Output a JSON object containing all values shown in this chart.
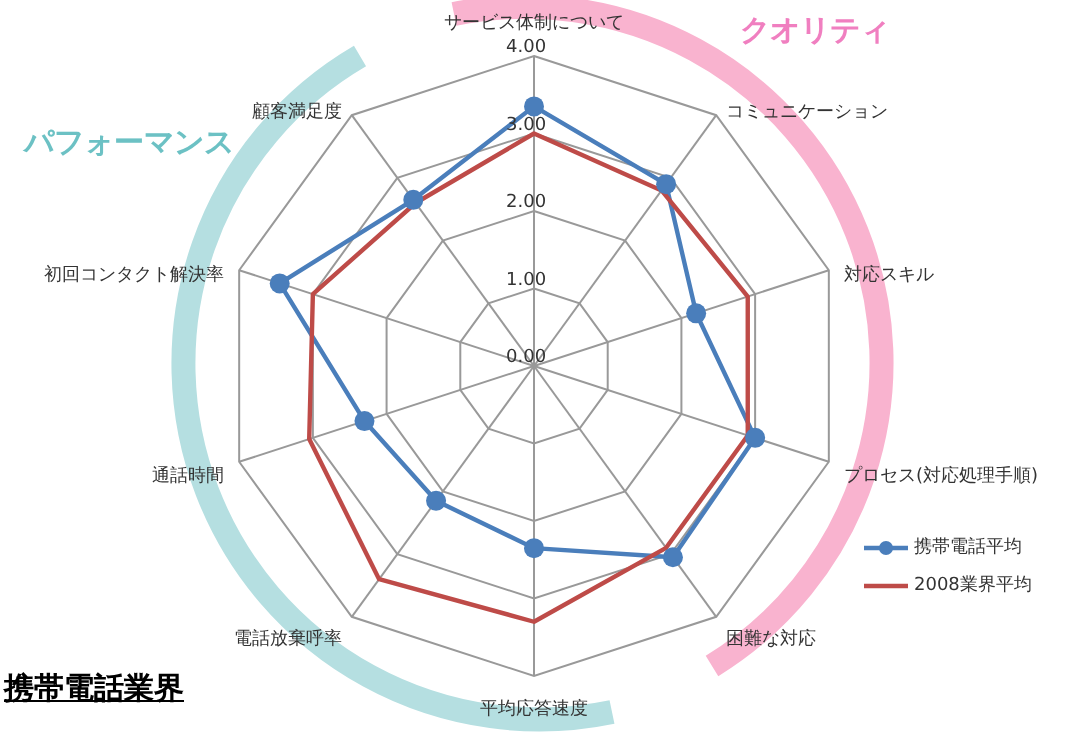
{
  "chart_data": {
    "type": "radar",
    "title": "携帯電話業界",
    "annotations": [
      "パフォーマンス",
      "クオリティ"
    ],
    "categories": [
      "サービス体制について",
      "コミュニケーション",
      "対応スキル",
      "プロセス(対応処理手順)",
      "困難な対応",
      "平均応答速度",
      "電話放棄呼率",
      "通話時間",
      "初回コンタクト解決率",
      "顧客満足度"
    ],
    "series": [
      {
        "name": "携帯電話平均",
        "color": "#4a7ebb",
        "values": [
          3.35,
          2.9,
          2.2,
          3.0,
          3.05,
          2.35,
          2.15,
          2.3,
          3.45,
          2.65
        ],
        "marker": "circle"
      },
      {
        "name": "2008業界平均",
        "color": "#be4b48",
        "values": [
          3.0,
          2.8,
          2.9,
          2.9,
          2.9,
          3.3,
          3.4,
          3.05,
          3.0,
          2.6
        ],
        "marker": "none"
      }
    ],
    "ylim": [
      0,
      4
    ],
    "yticks": [
      {
        "value": 0,
        "label": "0.00"
      },
      {
        "value": 1,
        "label": "1.00"
      },
      {
        "value": 2,
        "label": "2.00"
      },
      {
        "value": 3,
        "label": "3.00"
      },
      {
        "value": 4,
        "label": "4.00"
      }
    ],
    "grid": true,
    "legend": "right"
  }
}
